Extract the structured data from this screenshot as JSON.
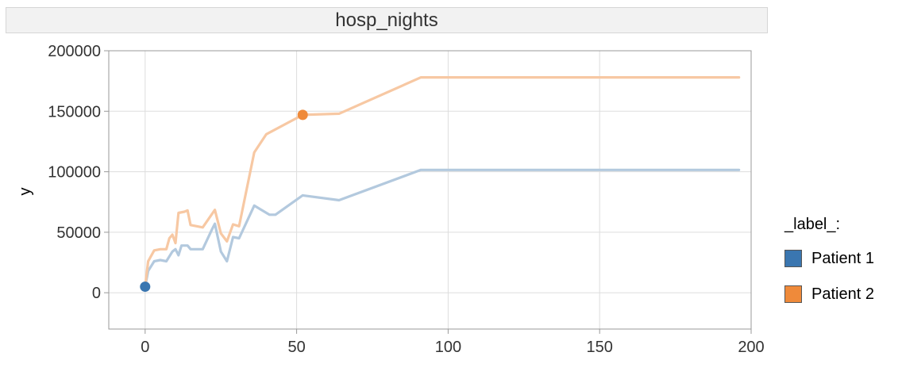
{
  "chart_data": {
    "type": "line",
    "title": "hosp_nights",
    "xlabel": "",
    "ylabel": "y",
    "xlim": [
      -12,
      200
    ],
    "ylim": [
      -30000,
      200000
    ],
    "x_ticks": [
      0,
      50,
      100,
      150,
      200
    ],
    "y_ticks": [
      0,
      50000,
      100000,
      150000,
      200000
    ],
    "grid": true,
    "legend": {
      "title": "_label_:",
      "placement": "right"
    },
    "series": [
      {
        "name": "Patient 1",
        "color": "#3a76b0",
        "line_color": "#b3c9de",
        "marker": {
          "x": 0,
          "y": 5000
        },
        "points": [
          [
            0,
            5000
          ],
          [
            1,
            18000
          ],
          [
            3,
            26000
          ],
          [
            5,
            27000
          ],
          [
            7,
            26000
          ],
          [
            9,
            34000
          ],
          [
            10,
            36000
          ],
          [
            11,
            31000
          ],
          [
            12,
            39000
          ],
          [
            14,
            39000
          ],
          [
            15,
            36000
          ],
          [
            19,
            36000
          ],
          [
            22,
            52000
          ],
          [
            23,
            57000
          ],
          [
            25,
            34000
          ],
          [
            27,
            26000
          ],
          [
            29,
            46000
          ],
          [
            31,
            45000
          ],
          [
            36,
            72000
          ],
          [
            38,
            69000
          ],
          [
            41,
            64500
          ],
          [
            43,
            64500
          ],
          [
            52,
            80500
          ],
          [
            64,
            76500
          ],
          [
            91,
            101500
          ],
          [
            196,
            101500
          ]
        ]
      },
      {
        "name": "Patient 2",
        "color": "#ef8a3a",
        "line_color": "#f7c8a3",
        "marker": {
          "x": 52,
          "y": 147000
        },
        "points": [
          [
            0,
            5000
          ],
          [
            1,
            26000
          ],
          [
            3,
            35000
          ],
          [
            5,
            36000
          ],
          [
            7,
            36000
          ],
          [
            8,
            45000
          ],
          [
            9,
            48000
          ],
          [
            10,
            41000
          ],
          [
            11,
            66000
          ],
          [
            13,
            67000
          ],
          [
            14,
            68000
          ],
          [
            15,
            56000
          ],
          [
            19,
            54000
          ],
          [
            23,
            68500
          ],
          [
            25,
            49000
          ],
          [
            27,
            42500
          ],
          [
            29,
            56500
          ],
          [
            31,
            55000
          ],
          [
            36,
            116000
          ],
          [
            40,
            131000
          ],
          [
            52,
            147000
          ],
          [
            64,
            148000
          ],
          [
            91,
            178000
          ],
          [
            196,
            178000
          ]
        ]
      }
    ]
  }
}
